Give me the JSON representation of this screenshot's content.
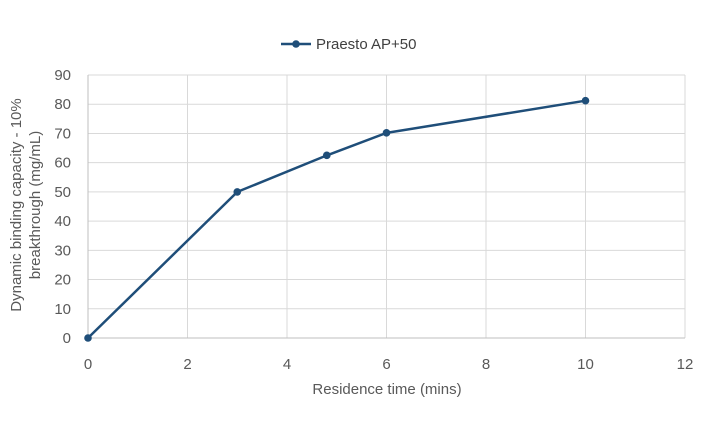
{
  "chart_data": {
    "type": "scatter",
    "title": "",
    "xlabel": "Residence time (mins)",
    "ylabel_lines": [
      "Dynamic binding capacity - 10%",
      "breakthrough  (mg/mL)"
    ],
    "xlim": [
      0,
      12
    ],
    "ylim": [
      0,
      90
    ],
    "xticks": [
      0,
      2,
      4,
      6,
      8,
      10,
      12
    ],
    "yticks": [
      0,
      10,
      20,
      30,
      40,
      50,
      60,
      70,
      80,
      90
    ],
    "grid": true,
    "legend_position": "top",
    "series": [
      {
        "name": "Praesto AP+50",
        "color": "#1f4e79",
        "x": [
          0,
          3,
          4.8,
          6,
          10
        ],
        "y": [
          0,
          50,
          62.5,
          70.2,
          81.2
        ]
      }
    ]
  }
}
